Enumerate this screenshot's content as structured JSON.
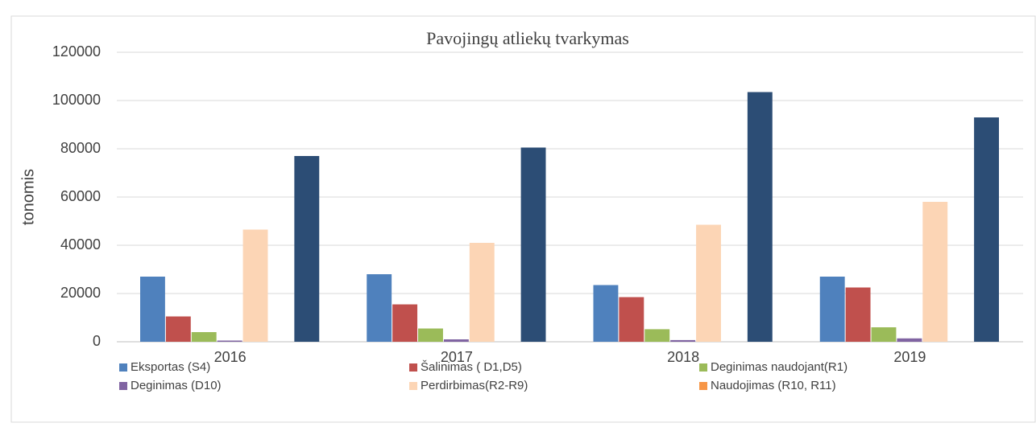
{
  "chart_data": {
    "type": "bar",
    "title": "Pavojingų atliekų tvarkymas",
    "y_label": "tonomis",
    "categories": [
      "2016",
      "2017",
      "2018",
      "2019"
    ],
    "series": [
      {
        "name": "Eksportas (S4)",
        "color": "#4f81bd",
        "values": [
          27000,
          28000,
          23500,
          27000
        ]
      },
      {
        "name": "Šalinimas ( D1,D5)",
        "color": "#c0504d",
        "values": [
          10500,
          15500,
          18500,
          22500
        ]
      },
      {
        "name": "Deginimas  naudojant(R1)",
        "color": "#9bbb59",
        "values": [
          4000,
          5500,
          5200,
          6000
        ]
      },
      {
        "name": "Deginimas (D10)",
        "color": "#8064a2",
        "values": [
          500,
          1000,
          700,
          1400
        ]
      },
      {
        "name": "Perdirbimas(R2-R9)",
        "color": "#fcd5b5",
        "values": [
          46500,
          41000,
          48500,
          58000
        ]
      },
      {
        "name": "Naudojimas (R10, R11)",
        "color": "#f79646",
        "values": [
          0,
          0,
          0,
          0
        ]
      },
      {
        "color": "#2c4d75",
        "values": [
          77000,
          80500,
          103500,
          93000
        ]
      }
    ],
    "ylim": [
      0,
      120000
    ],
    "yticks": [
      0,
      20000,
      40000,
      60000,
      80000,
      100000,
      120000
    ],
    "grid": true
  }
}
